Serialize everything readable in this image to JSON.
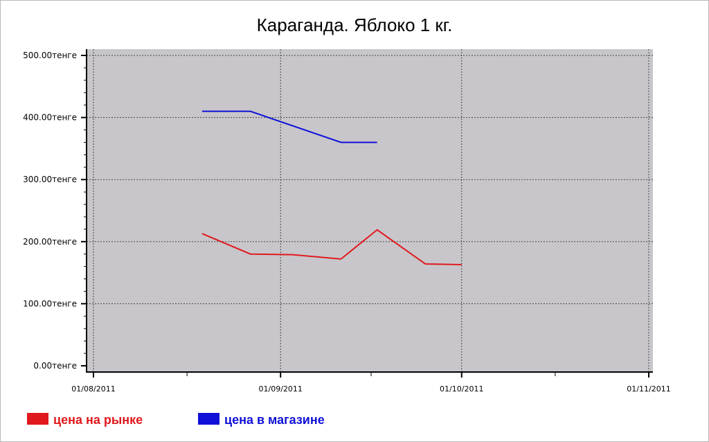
{
  "chart_data": {
    "type": "line",
    "title": "Караганда. Яблоко 1 кг.",
    "xlabel": "",
    "ylabel": "",
    "ylim": [
      0,
      500
    ],
    "xlim": [
      "2011-08-01",
      "2011-11-01"
    ],
    "y_ticks": [
      0,
      100,
      200,
      300,
      400,
      500
    ],
    "y_tick_labels": [
      "0.00тенге",
      "100.00тенге",
      "200.00тенге",
      "300.00тенге",
      "400.00тенге",
      "500.00тенге"
    ],
    "x_ticks": [
      "2011-08-01",
      "2011-09-01",
      "2011-10-01",
      "2011-11-01"
    ],
    "x_tick_labels": [
      "01/08/2011",
      "01/09/2011",
      "01/10/2011",
      "01/11/2011"
    ],
    "grid": true,
    "legend_position": "bottom-left",
    "plot_background": "#c8c6ca",
    "series": [
      {
        "name": "цена на рынке",
        "color": "#e0191e",
        "points": [
          {
            "x": "2011-08-19",
            "y": 213
          },
          {
            "x": "2011-08-27",
            "y": 180
          },
          {
            "x": "2011-09-03",
            "y": 179
          },
          {
            "x": "2011-09-11",
            "y": 172
          },
          {
            "x": "2011-09-17",
            "y": 219
          },
          {
            "x": "2011-09-25",
            "y": 164
          },
          {
            "x": "2011-10-01",
            "y": 163
          }
        ]
      },
      {
        "name": "цена в магазине",
        "color": "#1010d8",
        "points": [
          {
            "x": "2011-08-19",
            "y": 410
          },
          {
            "x": "2011-08-27",
            "y": 410
          },
          {
            "x": "2011-09-11",
            "y": 360
          },
          {
            "x": "2011-09-17",
            "y": 360
          }
        ]
      }
    ]
  }
}
